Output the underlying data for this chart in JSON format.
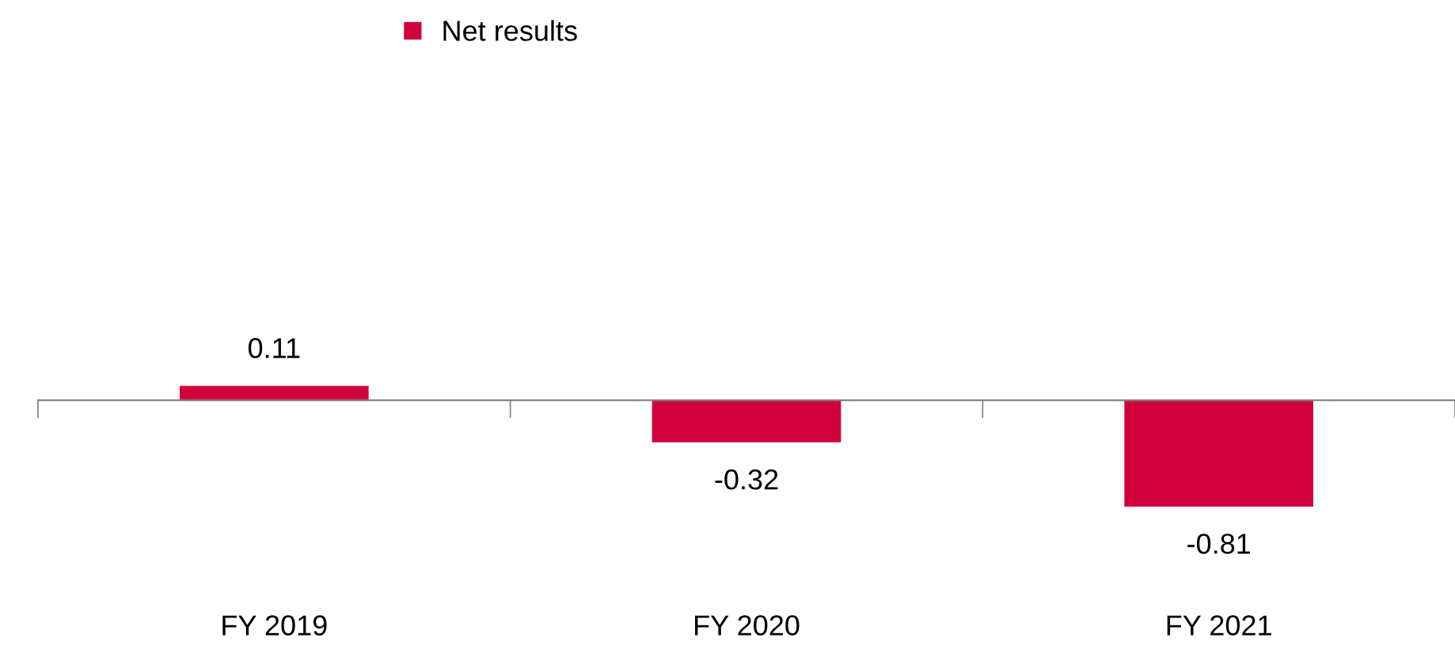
{
  "chart_data": {
    "type": "bar",
    "categories": [
      "FY 2019",
      "FY 2020",
      "FY 2021"
    ],
    "series": [
      {
        "name": "Net results",
        "color": "#d0003c",
        "values": [
          0.11,
          -0.32,
          -0.81
        ]
      }
    ],
    "tick_labels": "x",
    "data_labels": true,
    "legend": "top",
    "grid": false
  }
}
